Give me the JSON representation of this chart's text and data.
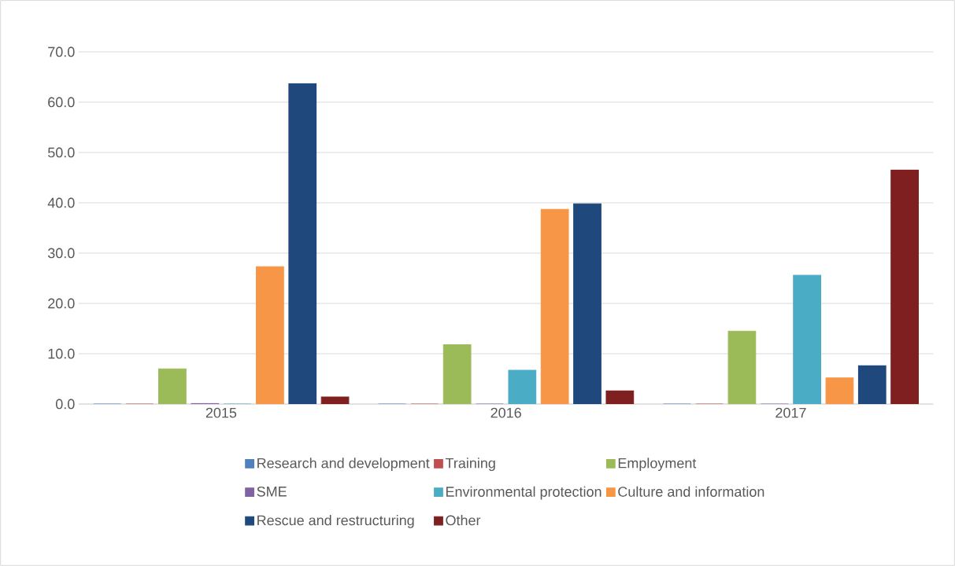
{
  "chart_data": {
    "type": "bar",
    "categories": [
      "2015",
      "2016",
      "2017"
    ],
    "series": [
      {
        "name": "Research and development",
        "color": "#4f81bd",
        "values": [
          0,
          0,
          0
        ]
      },
      {
        "name": "Training",
        "color": "#c0504d",
        "values": [
          0,
          0,
          0
        ]
      },
      {
        "name": "Employment",
        "color": "#9bbb59",
        "values": [
          7.0,
          11.8,
          14.5
        ]
      },
      {
        "name": "SME",
        "color": "#8064a2",
        "values": [
          0.1,
          0,
          0
        ]
      },
      {
        "name": "Environmental protection",
        "color": "#4bacc6",
        "values": [
          0,
          6.7,
          25.6
        ]
      },
      {
        "name": "Culture and information",
        "color": "#f79646",
        "values": [
          27.3,
          38.7,
          5.2
        ]
      },
      {
        "name": "Rescue and restructuring",
        "color": "#1f497d",
        "values": [
          63.7,
          39.8,
          7.6
        ]
      },
      {
        "name": "Other",
        "color": "#7f1f1f",
        "values": [
          1.4,
          2.6,
          46.5
        ]
      }
    ],
    "ylim": [
      0,
      70
    ],
    "yticks": [
      {
        "value": 0,
        "label": "0.0"
      },
      {
        "value": 10,
        "label": "10.0"
      },
      {
        "value": 20,
        "label": "20.0"
      },
      {
        "value": 30,
        "label": "30.0"
      },
      {
        "value": 40,
        "label": "40.0"
      },
      {
        "value": 50,
        "label": "50.0"
      },
      {
        "value": 60,
        "label": "60.0"
      },
      {
        "value": 70,
        "label": "70.0"
      }
    ],
    "grid": "y",
    "legend": "bottom"
  }
}
